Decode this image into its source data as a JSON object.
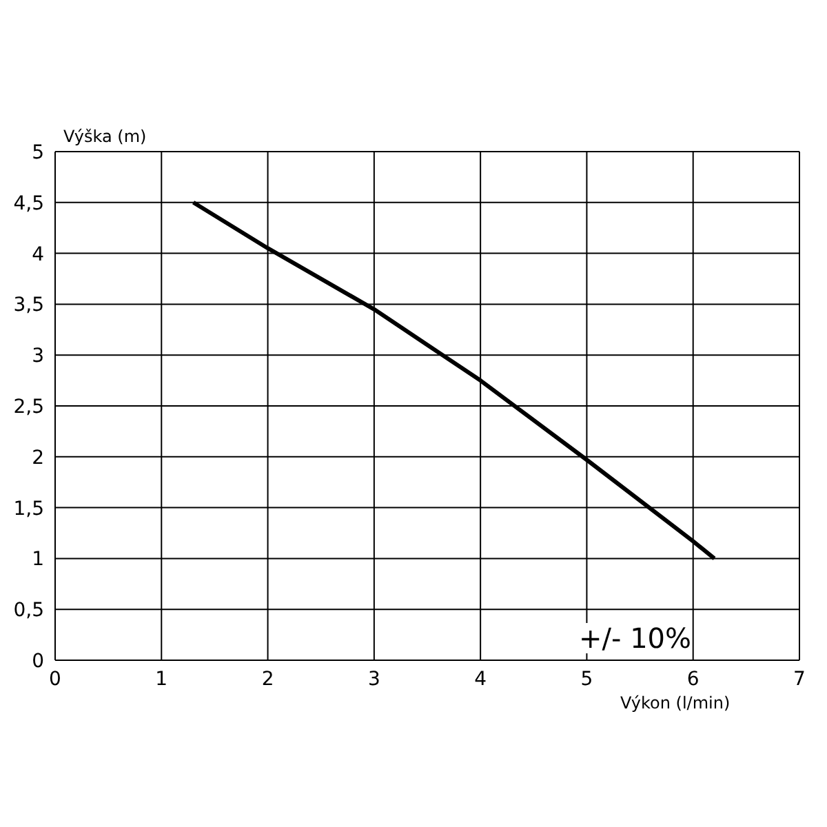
{
  "chart_data": {
    "type": "line",
    "xlabel": "Výkon (l/min)",
    "ylabel": "Výška (m)",
    "x": [
      1.3,
      2,
      3,
      4,
      5,
      6,
      6.2
    ],
    "series": [
      {
        "color": "#000000",
        "values": [
          4.5,
          4.05,
          3.45,
          2.75,
          1.97,
          1.17,
          1.0
        ]
      }
    ],
    "xlim": [
      0,
      7
    ],
    "xticks": [
      0,
      1,
      2,
      3,
      4,
      5,
      6,
      7
    ],
    "ylim": [
      0,
      5
    ],
    "yticks": [
      0,
      {
        "value": 0.5,
        "label": "0,5"
      },
      1,
      {
        "value": 1.5,
        "label": "1,5"
      },
      2,
      {
        "value": 2.5,
        "label": "2,5"
      },
      3,
      {
        "value": 3.5,
        "label": "3,5"
      },
      4,
      {
        "value": 4.5,
        "label": "4,5"
      },
      5
    ],
    "grid": true,
    "marker": "none",
    "line_style": "solid",
    "annotations": [
      "+/- 10%"
    ]
  }
}
